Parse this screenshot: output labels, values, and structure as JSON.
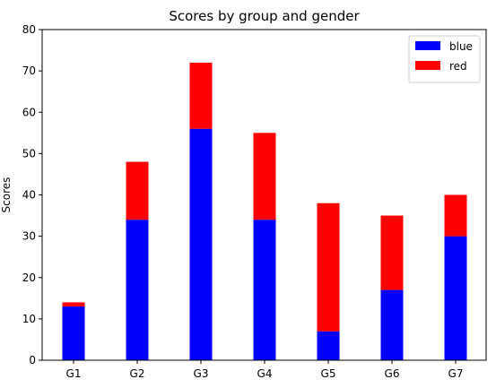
{
  "chart_data": {
    "type": "bar",
    "stacked": true,
    "title": "Scores by group and gender",
    "xlabel": "",
    "ylabel": "Scores",
    "categories": [
      "G1",
      "G2",
      "G3",
      "G4",
      "G5",
      "G6",
      "G7"
    ],
    "series": [
      {
        "name": "blue",
        "color": "#0000ff",
        "values": [
          13,
          34,
          56,
          34,
          7,
          17,
          30
        ]
      },
      {
        "name": "red",
        "color": "#ff0000",
        "values": [
          1,
          14,
          16,
          21,
          31,
          18,
          10
        ]
      }
    ],
    "ylim": [
      0,
      80
    ],
    "yticks": [
      0,
      10,
      20,
      30,
      40,
      50,
      60,
      70,
      80
    ],
    "grid": false,
    "legend_position": "top-right"
  }
}
